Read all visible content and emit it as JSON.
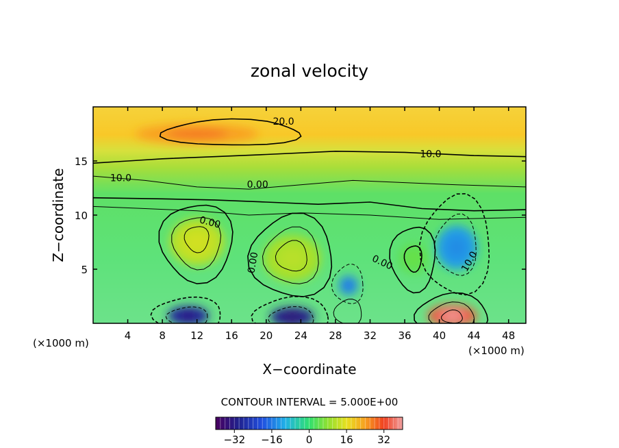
{
  "chart_data": {
    "type": "heatmap",
    "title": "zonal velocity",
    "xlabel": "X−coordinate",
    "ylabel": "Z−coordinate",
    "x_unit": "(×1000 m)",
    "z_unit": "(×1000 m)",
    "xlim": [
      0,
      50
    ],
    "ylim": [
      0,
      20
    ],
    "x_ticks": [
      "4",
      "8",
      "12",
      "16",
      "20",
      "24",
      "28",
      "32",
      "36",
      "40",
      "44",
      "48"
    ],
    "y_ticks": [
      "5",
      "10",
      "15"
    ],
    "contour_interval_label": "CONTOUR INTERVAL = 5.000E+00",
    "contour_interval": 5.0,
    "contour_labels": [
      "20.0",
      "10.0",
      "10.0",
      "0.00",
      "0.00",
      "0.00",
      "0.00",
      "10.0"
    ],
    "colorbar": {
      "range": [
        -40,
        40
      ],
      "ticks": [
        "−32",
        "−16",
        "0",
        "16",
        "32"
      ],
      "tick_values": [
        -32,
        -16,
        0,
        16,
        32
      ]
    },
    "features": [
      {
        "x": 11,
        "z": 0.7,
        "value": -28
      },
      {
        "x": 23,
        "z": 0.6,
        "value": -30
      },
      {
        "x": 41.5,
        "z": 0.7,
        "value": 34
      },
      {
        "x": 12,
        "z": 7.5,
        "value": 12
      },
      {
        "x": 23,
        "z": 6,
        "value": 10
      },
      {
        "x": 37,
        "z": 6,
        "value": 4
      },
      {
        "x": 42,
        "z": 7,
        "value": -12
      },
      {
        "x": 29.5,
        "z": 3.5,
        "value": -14
      },
      {
        "x": 12,
        "z": 17.5,
        "value": 24
      }
    ]
  }
}
